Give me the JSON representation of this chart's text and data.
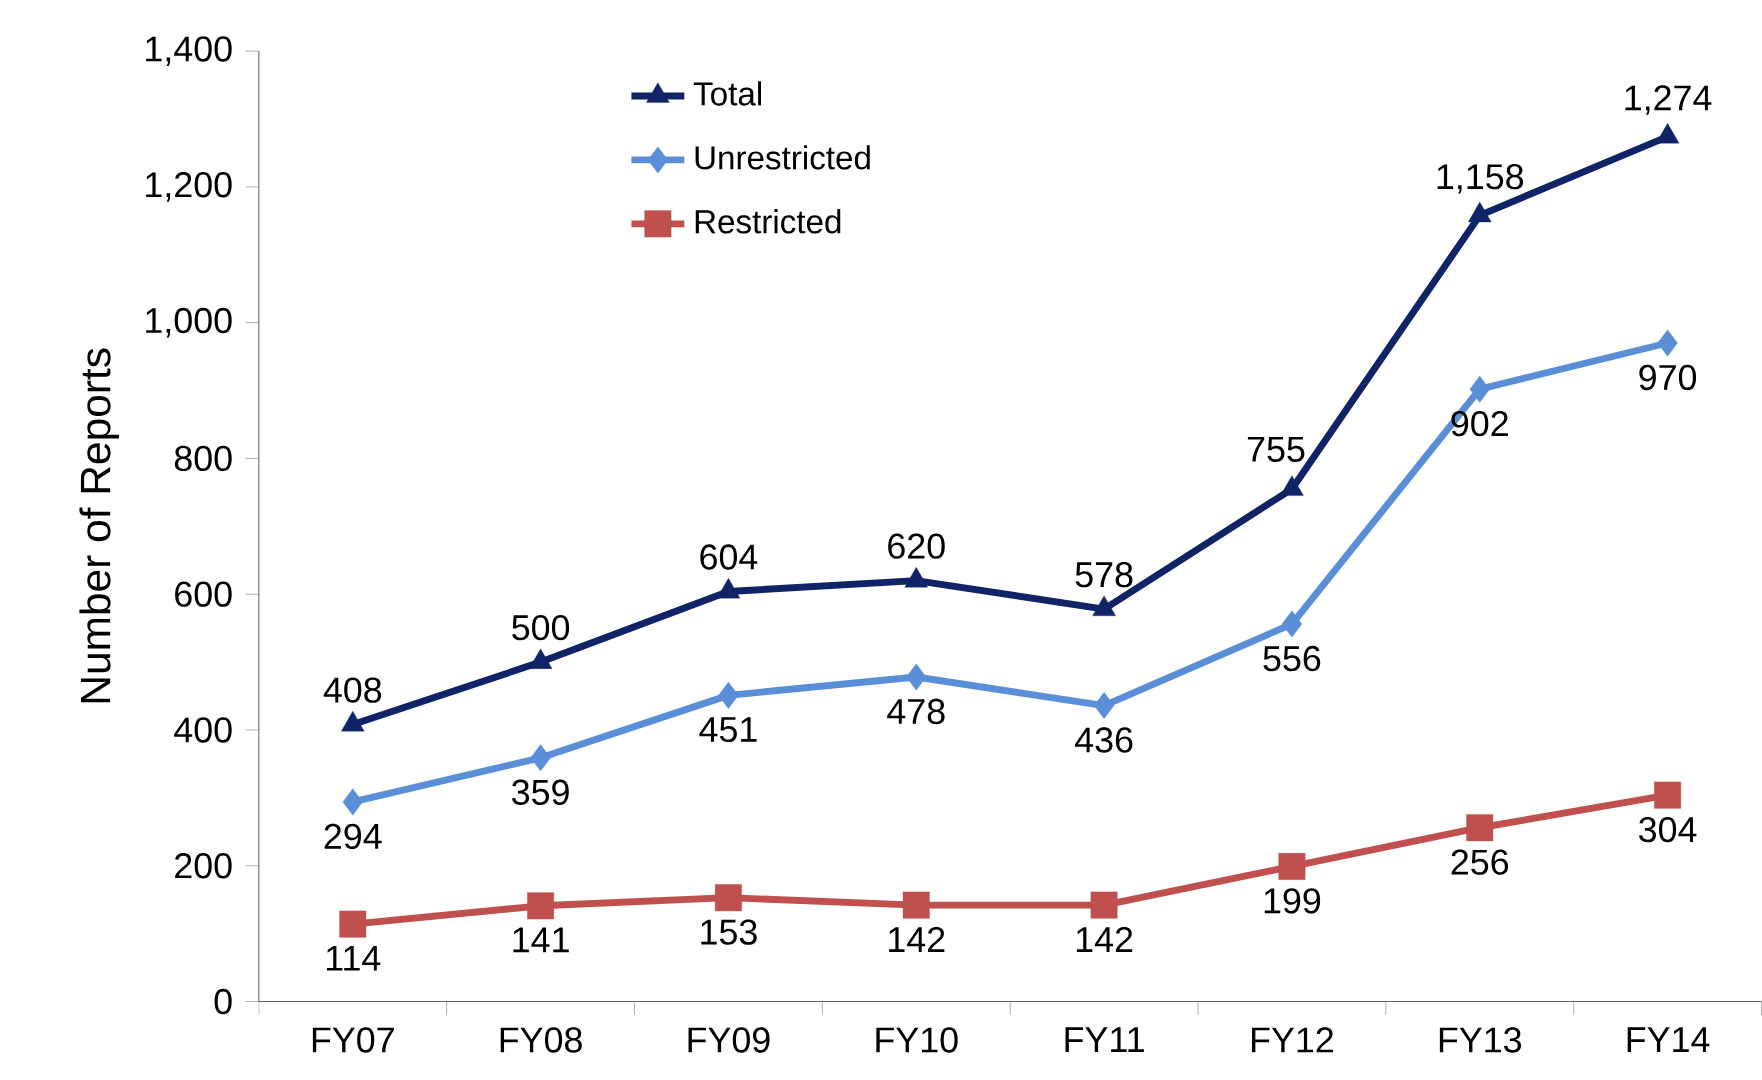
{
  "chart_data": {
    "type": "line",
    "ylabel": "Number of Reports",
    "categories": [
      "FY07",
      "FY08",
      "FY09",
      "FY10",
      "FY11",
      "FY12",
      "FY13",
      "FY14"
    ],
    "series": [
      {
        "name": "Total",
        "color": "#0f2366",
        "marker": "triangle",
        "values": [
          408,
          500,
          604,
          620,
          578,
          755,
          1158,
          1274
        ],
        "value_labels": [
          "408",
          "500",
          "604",
          "620",
          "578",
          "755",
          "1,158",
          "1,274"
        ]
      },
      {
        "name": "Unrestricted",
        "color": "#5a8fd8",
        "marker": "diamond",
        "values": [
          294,
          359,
          451,
          478,
          436,
          556,
          902,
          970
        ],
        "value_labels": [
          "294",
          "359",
          "451",
          "478",
          "436",
          "556",
          "902",
          "970"
        ]
      },
      {
        "name": "Restricted",
        "color": "#c0504d",
        "marker": "square",
        "values": [
          114,
          141,
          153,
          142,
          142,
          199,
          256,
          304
        ],
        "value_labels": [
          "114",
          "141",
          "153",
          "142",
          "142",
          "199",
          "256",
          "304"
        ]
      }
    ],
    "ylim": [
      0,
      1400
    ],
    "yticks": [
      0,
      200,
      400,
      600,
      800,
      {
        "value": 1000,
        "label": "1,000"
      },
      {
        "value": 1200,
        "label": "1,200"
      },
      {
        "value": 1400,
        "label": "1,400"
      }
    ],
    "grid": false,
    "legend": "top",
    "line_style": "solid"
  }
}
